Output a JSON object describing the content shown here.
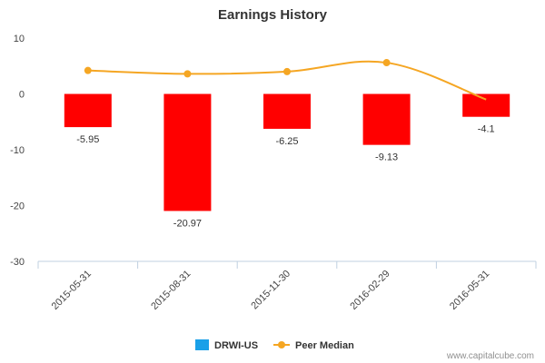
{
  "chart_data": {
    "type": "bar",
    "title": "Earnings History",
    "categories": [
      "2015-05-31",
      "2015-08-31",
      "2015-11-30",
      "2016-02-29",
      "2016-05-31"
    ],
    "ylim": [
      -30,
      10
    ],
    "yticks": [
      10,
      0,
      -10,
      -20,
      -30
    ],
    "yticks_labels": [
      "10",
      "0",
      "-10",
      "-20",
      "-30"
    ],
    "series": [
      {
        "name": "DRWI-US",
        "type": "bar",
        "values": [
          -5.95,
          -20.97,
          -6.25,
          -9.13,
          -4.1
        ],
        "labels": [
          "-5.95",
          "-20.97",
          "-6.25",
          "-9.13",
          "-4.1"
        ],
        "color": "#ff0000",
        "legend_color": "#1aa0e8"
      },
      {
        "name": "Peer Median",
        "type": "line",
        "values": [
          4.2,
          3.6,
          4.0,
          5.6,
          -1.0
        ],
        "color": "#f5a623"
      }
    ],
    "legend": "bottom-center",
    "grid": false
  },
  "credit": "www.capitalcube.com"
}
